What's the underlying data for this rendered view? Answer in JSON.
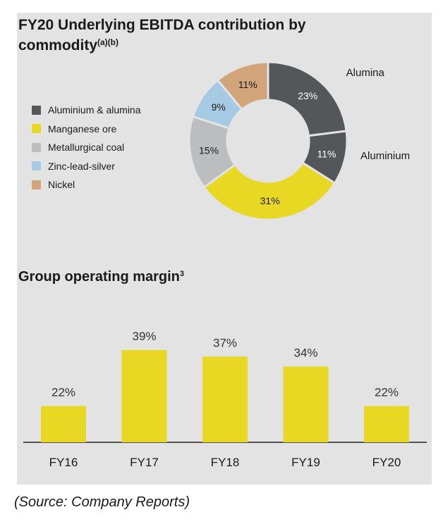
{
  "source": "(Source: Company Reports)",
  "chart_data": [
    {
      "type": "pie",
      "title": "FY20 Underlying EBITDA contribution by commodity",
      "title_sup": "(a)(b)",
      "legend": [
        {
          "label": "Aluminium & alumina",
          "color": "#54575a"
        },
        {
          "label": "Manganese ore",
          "color": "#e8d824"
        },
        {
          "label": "Metallurgical coal",
          "color": "#bcbdbf"
        },
        {
          "label": "Zinc-lead-silver",
          "color": "#a6cae3"
        },
        {
          "label": "Nickel",
          "color": "#d2a47a"
        }
      ],
      "legend_placement": "left",
      "slices": [
        {
          "name": "Alumina",
          "value": 23,
          "label": "23%",
          "color": "#54575a",
          "text_color": "#ffffff",
          "outer_label": "Alumina"
        },
        {
          "name": "Aluminium",
          "value": 11,
          "label": "11%",
          "color": "#54575a",
          "text_color": "#ffffff",
          "outer_label": "Aluminium"
        },
        {
          "name": "Manganese ore",
          "value": 31,
          "label": "31%",
          "color": "#e8d824",
          "text_color": "#1a1a1a"
        },
        {
          "name": "Metallurgical coal",
          "value": 15,
          "label": "15%",
          "color": "#bcbdbf",
          "text_color": "#1a1a1a"
        },
        {
          "name": "Zinc-lead-silver",
          "value": 9,
          "label": "9%",
          "color": "#a6cae3",
          "text_color": "#1a1a1a"
        },
        {
          "name": "Nickel",
          "value": 11,
          "label": "11%",
          "color": "#d2a47a",
          "text_color": "#1a1a1a"
        }
      ]
    },
    {
      "type": "bar",
      "title": "Group operating margin",
      "title_sup": "3",
      "categories": [
        "FY16",
        "FY17",
        "FY18",
        "FY19",
        "FY20"
      ],
      "values": [
        22,
        39,
        37,
        34,
        22
      ],
      "labels": [
        "22%",
        "39%",
        "37%",
        "34%",
        "22%"
      ],
      "color": "#e8d824",
      "ylim": [
        11,
        40
      ]
    }
  ]
}
